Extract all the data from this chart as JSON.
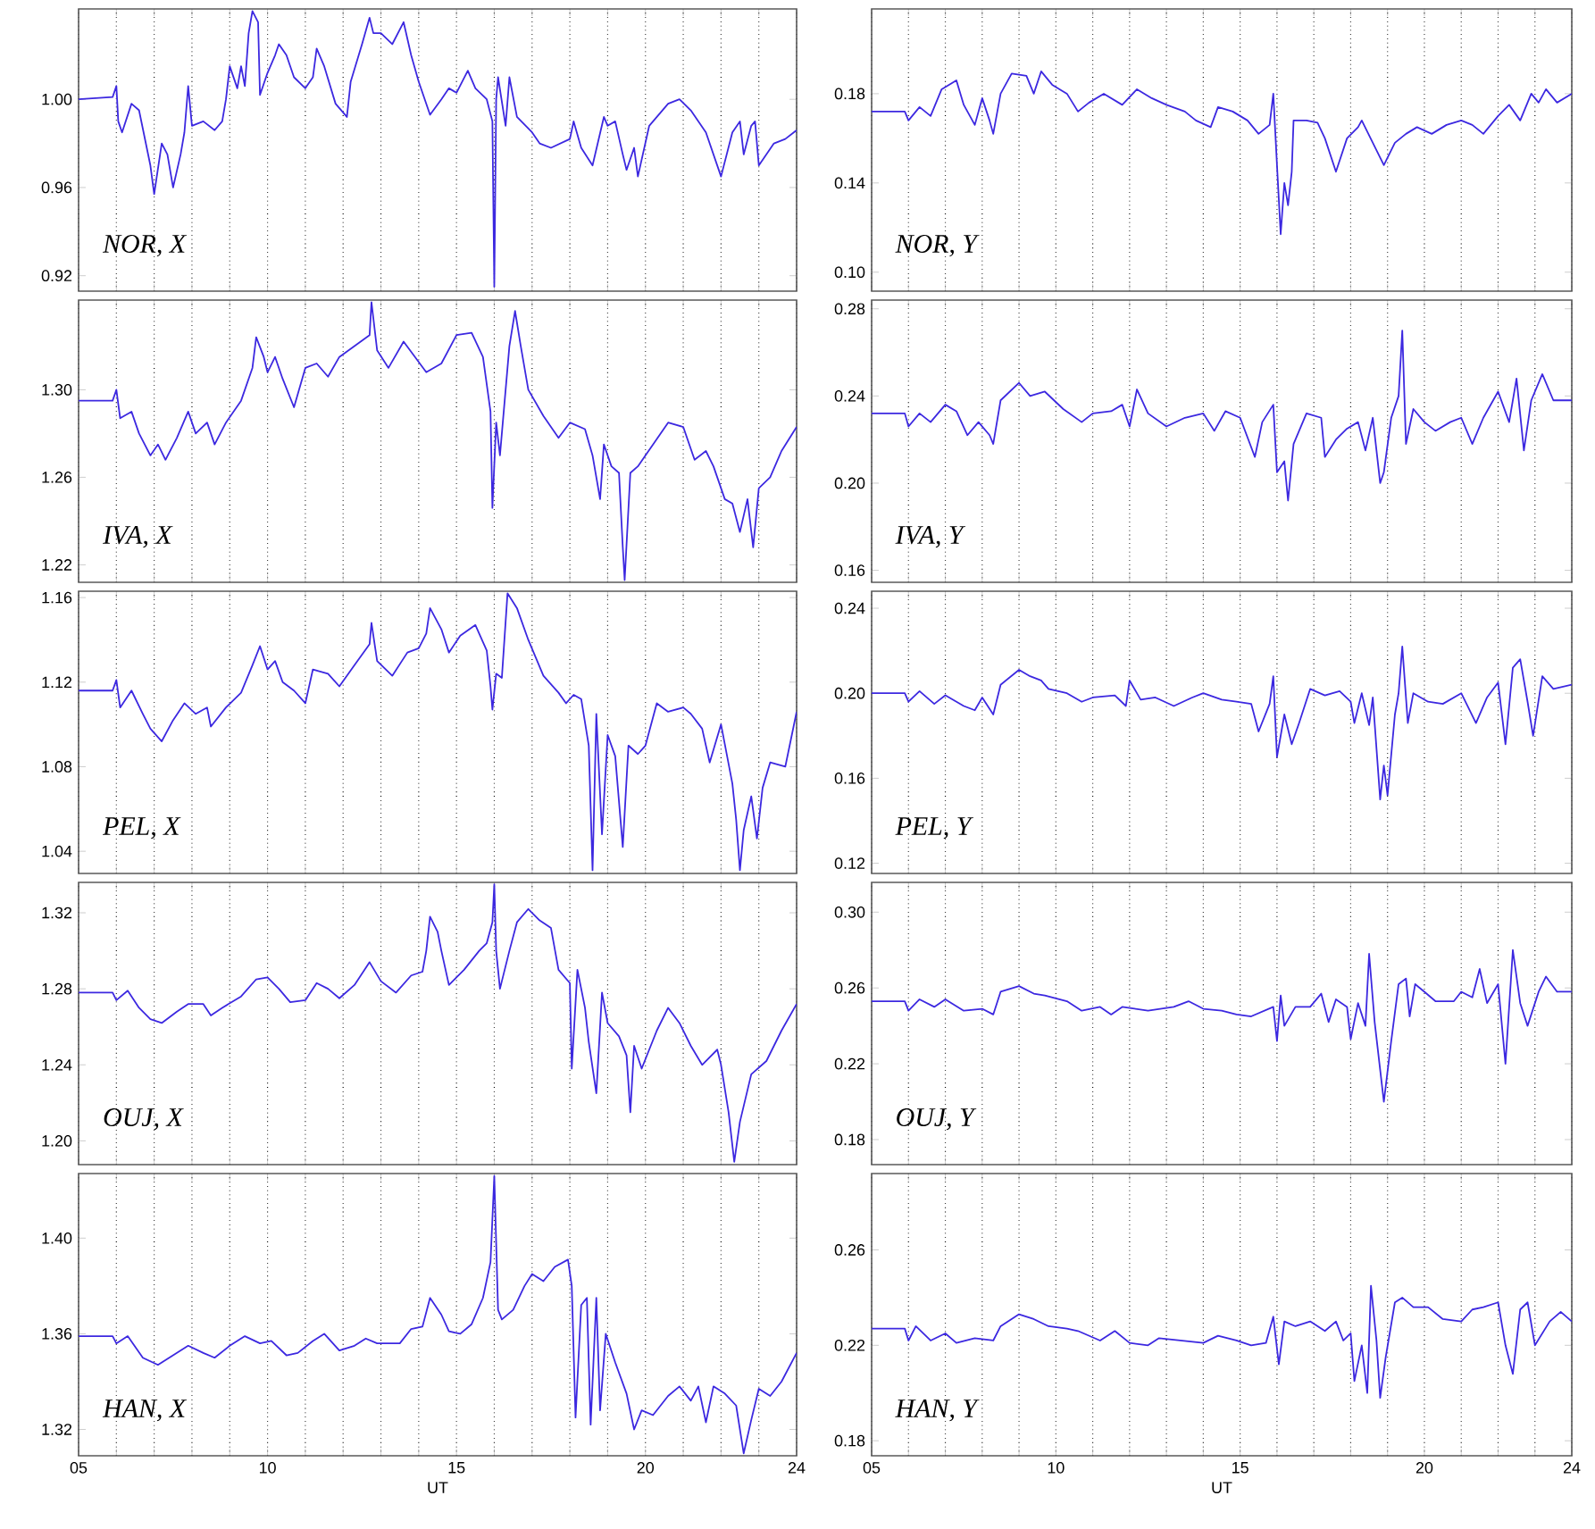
{
  "chart_data": [
    {
      "type": "line",
      "annotations": [
        "NOR, X"
      ],
      "tick_labels": "y",
      "grid": "x",
      "xlim": [
        5,
        24
      ],
      "ylim": [
        0.913,
        1.041
      ],
      "xticks": [
        5,
        6,
        7,
        8,
        9,
        10,
        11,
        12,
        13,
        14,
        15,
        16,
        17,
        18,
        19,
        20,
        21,
        22,
        23,
        24
      ],
      "yticks": [
        0.92,
        0.96,
        {
          "value": 1.0,
          "label": "1.00"
        }
      ],
      "x": [
        5,
        5.9,
        6,
        6.05,
        6.15,
        6.4,
        6.6,
        6.9,
        7,
        7.2,
        7.35,
        7.5,
        7.7,
        7.8,
        7.9,
        8,
        8.3,
        8.6,
        8.8,
        8.9,
        9,
        9.2,
        9.3,
        9.4,
        9.5,
        9.6,
        9.75,
        9.8,
        10,
        10.2,
        10.3,
        10.5,
        10.7,
        11,
        11.2,
        11.3,
        11.5,
        11.8,
        12.1,
        12.2,
        12.5,
        12.7,
        12.8,
        13,
        13.3,
        13.6,
        13.8,
        14,
        14.3,
        14.6,
        14.8,
        15,
        15.3,
        15.5,
        15.8,
        15.95,
        16,
        16.05,
        16.1,
        16.3,
        16.4,
        16.6,
        17,
        17.2,
        17.5,
        18,
        18.1,
        18.3,
        18.6,
        18.9,
        19,
        19.2,
        19.4,
        19.5,
        19.7,
        19.8,
        20.1,
        20.6,
        20.9,
        21.2,
        21.6,
        21.8,
        22,
        22.3,
        22.5,
        22.6,
        22.8,
        22.9,
        23,
        23.4,
        23.7,
        24
      ],
      "series": [
        {
          "color": "#3c28e0",
          "values": [
            1.0,
            1.001,
            1.006,
            0.99,
            0.985,
            0.998,
            0.995,
            0.97,
            0.957,
            0.98,
            0.975,
            0.96,
            0.975,
            0.985,
            1.006,
            0.988,
            0.99,
            0.986,
            0.99,
            1.0,
            1.015,
            1.005,
            1.015,
            1.006,
            1.03,
            1.04,
            1.035,
            1.002,
            1.012,
            1.02,
            1.025,
            1.02,
            1.01,
            1.005,
            1.01,
            1.023,
            1.015,
            0.998,
            0.992,
            1.008,
            1.025,
            1.037,
            1.03,
            1.03,
            1.025,
            1.035,
            1.02,
            1.008,
            0.993,
            1.0,
            1.005,
            1.003,
            1.013,
            1.005,
            1.0,
            0.99,
            0.915,
            1.0,
            1.01,
            0.988,
            1.01,
            0.992,
            0.985,
            0.98,
            0.978,
            0.982,
            0.99,
            0.978,
            0.97,
            0.992,
            0.988,
            0.99,
            0.975,
            0.968,
            0.978,
            0.965,
            0.988,
            0.998,
            1.0,
            0.995,
            0.985,
            0.975,
            0.965,
            0.985,
            0.99,
            0.975,
            0.988,
            0.99,
            0.97,
            0.98,
            0.982,
            0.986
          ]
        }
      ]
    },
    {
      "type": "line",
      "annotations": [
        "NOR, Y"
      ],
      "tick_labels": "y",
      "grid": "x",
      "xlim": [
        5,
        24
      ],
      "ylim": [
        0.0915,
        0.218
      ],
      "xticks": [
        5,
        6,
        7,
        8,
        9,
        10,
        11,
        12,
        13,
        14,
        15,
        16,
        17,
        18,
        19,
        20,
        21,
        22,
        23,
        24
      ],
      "yticks": [
        {
          "value": 0.1,
          "label": "0.10"
        },
        0.14,
        0.18
      ],
      "x": [
        5,
        5.9,
        6,
        6.3,
        6.6,
        6.9,
        7.3,
        7.5,
        7.8,
        8,
        8.2,
        8.3,
        8.5,
        8.8,
        9.2,
        9.4,
        9.6,
        9.9,
        10.3,
        10.6,
        10.9,
        11.3,
        11.8,
        12.2,
        12.6,
        13,
        13.5,
        13.8,
        14.2,
        14.4,
        14.8,
        15.2,
        15.5,
        15.8,
        15.9,
        16,
        16.1,
        16.2,
        16.3,
        16.4,
        16.45,
        16.8,
        17.1,
        17.3,
        17.6,
        17.9,
        18.2,
        18.3,
        18.6,
        18.9,
        19.2,
        19.5,
        19.8,
        20.2,
        20.6,
        21,
        21.3,
        21.6,
        22,
        22.3,
        22.6,
        22.9,
        23.1,
        23.3,
        23.6,
        24
      ],
      "series": [
        {
          "color": "#3c28e0",
          "values": [
            0.172,
            0.172,
            0.168,
            0.174,
            0.17,
            0.182,
            0.186,
            0.175,
            0.166,
            0.178,
            0.168,
            0.162,
            0.18,
            0.189,
            0.188,
            0.18,
            0.19,
            0.184,
            0.18,
            0.172,
            0.176,
            0.18,
            0.175,
            0.182,
            0.178,
            0.175,
            0.172,
            0.168,
            0.165,
            0.174,
            0.172,
            0.168,
            0.162,
            0.166,
            0.18,
            0.148,
            0.117,
            0.14,
            0.13,
            0.145,
            0.168,
            0.168,
            0.167,
            0.16,
            0.145,
            0.16,
            0.165,
            0.168,
            0.158,
            0.148,
            0.158,
            0.162,
            0.165,
            0.162,
            0.166,
            0.168,
            0.166,
            0.162,
            0.17,
            0.175,
            0.168,
            0.18,
            0.176,
            0.182,
            0.176,
            0.18
          ]
        }
      ]
    },
    {
      "type": "line",
      "annotations": [
        "IVA, X"
      ],
      "tick_labels": "y",
      "grid": "x",
      "xlim": [
        5,
        24
      ],
      "ylim": [
        1.212,
        1.341
      ],
      "xticks": [
        5,
        6,
        7,
        8,
        9,
        10,
        11,
        12,
        13,
        14,
        15,
        16,
        17,
        18,
        19,
        20,
        21,
        22,
        23,
        24
      ],
      "yticks": [
        1.22,
        1.26,
        {
          "value": 1.3,
          "label": "1.30"
        }
      ],
      "x": [
        5,
        5.9,
        6,
        6.1,
        6.4,
        6.6,
        6.9,
        7.1,
        7.3,
        7.6,
        7.9,
        8.1,
        8.4,
        8.6,
        8.9,
        9.3,
        9.6,
        9.7,
        9.9,
        10,
        10.2,
        10.4,
        10.7,
        11,
        11.3,
        11.6,
        11.9,
        12.3,
        12.7,
        12.75,
        12.9,
        13.2,
        13.6,
        13.9,
        14.2,
        14.6,
        15,
        15.4,
        15.7,
        15.9,
        15.95,
        16.05,
        16.15,
        16.3,
        16.4,
        16.55,
        16.7,
        16.9,
        17.3,
        17.7,
        18,
        18.4,
        18.6,
        18.8,
        18.9,
        19.1,
        19.3,
        19.4,
        19.45,
        19.6,
        19.8,
        20.2,
        20.6,
        21,
        21.3,
        21.6,
        21.8,
        22.1,
        22.3,
        22.5,
        22.7,
        22.85,
        23,
        23.3,
        23.6,
        24
      ],
      "series": [
        {
          "color": "#3c28e0",
          "values": [
            1.295,
            1.295,
            1.3,
            1.287,
            1.29,
            1.28,
            1.27,
            1.275,
            1.268,
            1.278,
            1.29,
            1.28,
            1.285,
            1.275,
            1.285,
            1.295,
            1.31,
            1.324,
            1.315,
            1.308,
            1.315,
            1.305,
            1.292,
            1.31,
            1.312,
            1.306,
            1.315,
            1.32,
            1.325,
            1.34,
            1.318,
            1.31,
            1.322,
            1.315,
            1.308,
            1.312,
            1.325,
            1.326,
            1.315,
            1.29,
            1.246,
            1.285,
            1.27,
            1.3,
            1.32,
            1.336,
            1.32,
            1.3,
            1.288,
            1.278,
            1.285,
            1.282,
            1.27,
            1.25,
            1.275,
            1.265,
            1.262,
            1.228,
            1.213,
            1.262,
            1.265,
            1.275,
            1.285,
            1.283,
            1.268,
            1.272,
            1.265,
            1.25,
            1.248,
            1.235,
            1.25,
            1.228,
            1.255,
            1.26,
            1.272,
            1.283
          ]
        }
      ]
    },
    {
      "type": "line",
      "annotations": [
        "IVA, Y"
      ],
      "tick_labels": "y",
      "grid": "x",
      "xlim": [
        5,
        24
      ],
      "ylim": [
        0.1545,
        0.284
      ],
      "xticks": [
        5,
        6,
        7,
        8,
        9,
        10,
        11,
        12,
        13,
        14,
        15,
        16,
        17,
        18,
        19,
        20,
        21,
        22,
        23,
        24
      ],
      "yticks": [
        0.16,
        {
          "value": 0.2,
          "label": "0.20"
        },
        0.24,
        0.28
      ],
      "x": [
        5,
        5.9,
        6,
        6.3,
        6.6,
        7,
        7.3,
        7.6,
        7.9,
        8.2,
        8.3,
        8.5,
        9,
        9.3,
        9.7,
        10.2,
        10.7,
        11,
        11.5,
        11.8,
        12,
        12.2,
        12.5,
        13,
        13.5,
        14,
        14.3,
        14.6,
        15,
        15.4,
        15.6,
        15.9,
        16,
        16.2,
        16.3,
        16.45,
        16.8,
        17.2,
        17.3,
        17.6,
        17.9,
        18.2,
        18.4,
        18.6,
        18.8,
        18.9,
        19.1,
        19.3,
        19.4,
        19.5,
        19.7,
        20,
        20.3,
        20.7,
        21,
        21.3,
        21.6,
        22,
        22.3,
        22.5,
        22.7,
        22.9,
        23.2,
        23.5,
        24
      ],
      "series": [
        {
          "color": "#3c28e0",
          "values": [
            0.232,
            0.232,
            0.226,
            0.232,
            0.228,
            0.236,
            0.233,
            0.222,
            0.228,
            0.222,
            0.218,
            0.238,
            0.246,
            0.24,
            0.242,
            0.234,
            0.228,
            0.232,
            0.233,
            0.236,
            0.226,
            0.243,
            0.232,
            0.226,
            0.23,
            0.232,
            0.224,
            0.233,
            0.23,
            0.212,
            0.228,
            0.236,
            0.205,
            0.21,
            0.192,
            0.218,
            0.232,
            0.23,
            0.212,
            0.22,
            0.225,
            0.228,
            0.215,
            0.23,
            0.2,
            0.205,
            0.23,
            0.24,
            0.27,
            0.218,
            0.234,
            0.228,
            0.224,
            0.228,
            0.23,
            0.218,
            0.23,
            0.242,
            0.228,
            0.248,
            0.215,
            0.238,
            0.25,
            0.238,
            0.238
          ]
        }
      ]
    },
    {
      "type": "line",
      "annotations": [
        "PEL, X"
      ],
      "tick_labels": "y",
      "grid": "x",
      "xlim": [
        5,
        24
      ],
      "ylim": [
        1.0295,
        1.163
      ],
      "xticks": [
        5,
        6,
        7,
        8,
        9,
        10,
        11,
        12,
        13,
        14,
        15,
        16,
        17,
        18,
        19,
        20,
        21,
        22,
        23,
        24
      ],
      "yticks": [
        1.04,
        1.08,
        1.12,
        1.16
      ],
      "x": [
        5,
        5.9,
        6,
        6.1,
        6.4,
        6.7,
        6.9,
        7.2,
        7.5,
        7.8,
        8.1,
        8.4,
        8.5,
        8.9,
        9.3,
        9.6,
        9.8,
        10,
        10.2,
        10.4,
        10.7,
        11,
        11.2,
        11.6,
        11.9,
        12.3,
        12.7,
        12.75,
        12.9,
        13.3,
        13.7,
        14,
        14.2,
        14.3,
        14.6,
        14.8,
        15.1,
        15.5,
        15.8,
        15.9,
        15.95,
        16.05,
        16.2,
        16.35,
        16.6,
        16.9,
        17.3,
        17.7,
        17.9,
        18.1,
        18.3,
        18.5,
        18.6,
        18.7,
        18.85,
        19,
        19.2,
        19.4,
        19.55,
        19.8,
        20,
        20.3,
        20.6,
        21,
        21.2,
        21.5,
        21.7,
        22,
        22.3,
        22.4,
        22.5,
        22.6,
        22.8,
        22.95,
        23.1,
        23.3,
        23.7,
        24
      ],
      "series": [
        {
          "color": "#3c28e0",
          "values": [
            1.116,
            1.116,
            1.121,
            1.108,
            1.116,
            1.105,
            1.098,
            1.092,
            1.102,
            1.11,
            1.105,
            1.108,
            1.099,
            1.108,
            1.115,
            1.128,
            1.137,
            1.126,
            1.13,
            1.12,
            1.116,
            1.11,
            1.126,
            1.124,
            1.118,
            1.128,
            1.138,
            1.148,
            1.13,
            1.123,
            1.134,
            1.136,
            1.143,
            1.155,
            1.145,
            1.134,
            1.142,
            1.147,
            1.135,
            1.118,
            1.107,
            1.124,
            1.122,
            1.162,
            1.155,
            1.14,
            1.123,
            1.115,
            1.11,
            1.114,
            1.112,
            1.09,
            1.031,
            1.105,
            1.048,
            1.095,
            1.085,
            1.042,
            1.09,
            1.086,
            1.09,
            1.11,
            1.106,
            1.108,
            1.105,
            1.098,
            1.082,
            1.1,
            1.072,
            1.055,
            1.031,
            1.05,
            1.066,
            1.046,
            1.07,
            1.082,
            1.08,
            1.106
          ]
        }
      ]
    },
    {
      "type": "line",
      "annotations": [
        "PEL, Y"
      ],
      "tick_labels": "y",
      "grid": "x",
      "xlim": [
        5,
        24
      ],
      "ylim": [
        0.1152,
        0.248
      ],
      "xticks": [
        5,
        6,
        7,
        8,
        9,
        10,
        11,
        12,
        13,
        14,
        15,
        16,
        17,
        18,
        19,
        20,
        21,
        22,
        23,
        24
      ],
      "yticks": [
        0.12,
        0.16,
        {
          "value": 0.2,
          "label": "0.20"
        },
        0.24
      ],
      "x": [
        5,
        5.9,
        6,
        6.3,
        6.7,
        7,
        7.5,
        7.8,
        8,
        8.3,
        8.5,
        9,
        9.3,
        9.6,
        9.8,
        10.3,
        10.7,
        11,
        11.6,
        11.9,
        12,
        12.3,
        12.7,
        13.2,
        13.7,
        14,
        14.5,
        14.9,
        15.3,
        15.5,
        15.8,
        15.9,
        16,
        16.2,
        16.4,
        16.6,
        16.9,
        17.3,
        17.7,
        18,
        18.1,
        18.3,
        18.5,
        18.6,
        18.8,
        18.9,
        19,
        19.2,
        19.3,
        19.4,
        19.55,
        19.7,
        20.1,
        20.5,
        21,
        21.4,
        21.7,
        22,
        22.2,
        22.4,
        22.6,
        22.8,
        22.95,
        23.2,
        23.5,
        24
      ],
      "series": [
        {
          "color": "#3c28e0",
          "values": [
            0.2,
            0.2,
            0.196,
            0.201,
            0.195,
            0.199,
            0.194,
            0.192,
            0.198,
            0.19,
            0.204,
            0.211,
            0.208,
            0.206,
            0.202,
            0.2,
            0.196,
            0.198,
            0.199,
            0.194,
            0.206,
            0.197,
            0.198,
            0.194,
            0.198,
            0.2,
            0.197,
            0.196,
            0.195,
            0.182,
            0.195,
            0.208,
            0.17,
            0.19,
            0.176,
            0.186,
            0.202,
            0.199,
            0.201,
            0.196,
            0.186,
            0.2,
            0.185,
            0.198,
            0.15,
            0.166,
            0.152,
            0.19,
            0.2,
            0.222,
            0.186,
            0.2,
            0.196,
            0.195,
            0.2,
            0.186,
            0.198,
            0.205,
            0.176,
            0.212,
            0.216,
            0.196,
            0.18,
            0.208,
            0.202,
            0.204
          ]
        }
      ]
    },
    {
      "type": "line",
      "annotations": [
        "OUJ, X"
      ],
      "tick_labels": "y",
      "grid": "x",
      "xlim": [
        5,
        24
      ],
      "ylim": [
        1.1875,
        1.336
      ],
      "xticks": [
        5,
        6,
        7,
        8,
        9,
        10,
        11,
        12,
        13,
        14,
        15,
        16,
        17,
        18,
        19,
        20,
        21,
        22,
        23,
        24
      ],
      "yticks": [
        {
          "value": 1.2,
          "label": "1.20"
        },
        1.24,
        1.28,
        1.32
      ],
      "x": [
        5,
        5.9,
        6,
        6.3,
        6.6,
        6.9,
        7.2,
        7.6,
        7.9,
        8.3,
        8.5,
        8.8,
        9.3,
        9.7,
        10,
        10.3,
        10.6,
        11,
        11.3,
        11.6,
        11.9,
        12.3,
        12.7,
        13,
        13.4,
        13.8,
        14.1,
        14.2,
        14.3,
        14.5,
        14.6,
        14.8,
        15.2,
        15.6,
        15.8,
        15.95,
        16,
        16.05,
        16.15,
        16.4,
        16.6,
        16.9,
        17.2,
        17.5,
        17.7,
        18,
        18.05,
        18.2,
        18.4,
        18.5,
        18.7,
        18.85,
        19,
        19.3,
        19.5,
        19.6,
        19.7,
        19.9,
        20.3,
        20.6,
        20.9,
        21.2,
        21.5,
        21.9,
        22,
        22.2,
        22.35,
        22.5,
        22.8,
        23.2,
        23.6,
        24
      ],
      "series": [
        {
          "color": "#3c28e0",
          "values": [
            1.278,
            1.278,
            1.274,
            1.279,
            1.27,
            1.264,
            1.262,
            1.268,
            1.272,
            1.272,
            1.266,
            1.27,
            1.276,
            1.285,
            1.286,
            1.28,
            1.273,
            1.274,
            1.283,
            1.28,
            1.275,
            1.282,
            1.294,
            1.284,
            1.278,
            1.287,
            1.289,
            1.3,
            1.318,
            1.31,
            1.3,
            1.282,
            1.29,
            1.3,
            1.304,
            1.315,
            1.335,
            1.3,
            1.28,
            1.3,
            1.315,
            1.322,
            1.316,
            1.312,
            1.29,
            1.283,
            1.238,
            1.29,
            1.27,
            1.252,
            1.225,
            1.278,
            1.262,
            1.255,
            1.245,
            1.215,
            1.25,
            1.238,
            1.258,
            1.27,
            1.262,
            1.25,
            1.24,
            1.248,
            1.24,
            1.215,
            1.189,
            1.21,
            1.235,
            1.242,
            1.258,
            1.272
          ]
        }
      ]
    },
    {
      "type": "line",
      "annotations": [
        "OUJ, Y"
      ],
      "tick_labels": "y",
      "grid": "x",
      "xlim": [
        5,
        24
      ],
      "ylim": [
        0.1668,
        0.3157
      ],
      "xticks": [
        5,
        6,
        7,
        8,
        9,
        10,
        11,
        12,
        13,
        14,
        15,
        16,
        17,
        18,
        19,
        20,
        21,
        22,
        23,
        24
      ],
      "yticks": [
        0.18,
        0.22,
        0.26,
        {
          "value": 0.3,
          "label": "0.30"
        }
      ],
      "x": [
        5,
        5.9,
        6,
        6.3,
        6.7,
        7,
        7.5,
        8,
        8.3,
        8.5,
        9,
        9.4,
        9.7,
        10.3,
        10.7,
        11.2,
        11.5,
        11.8,
        12.5,
        13.2,
        13.6,
        14,
        14.5,
        14.9,
        15.3,
        15.9,
        16,
        16.1,
        16.2,
        16.5,
        16.9,
        17.2,
        17.4,
        17.6,
        17.9,
        18,
        18.2,
        18.4,
        18.5,
        18.65,
        18.9,
        19.1,
        19.3,
        19.5,
        19.6,
        19.75,
        20,
        20.3,
        20.8,
        21,
        21.3,
        21.5,
        21.7,
        22,
        22.2,
        22.4,
        22.6,
        22.8,
        23.1,
        23.3,
        23.6,
        24
      ],
      "series": [
        {
          "color": "#3c28e0",
          "values": [
            0.253,
            0.253,
            0.248,
            0.254,
            0.25,
            0.254,
            0.248,
            0.249,
            0.246,
            0.258,
            0.261,
            0.257,
            0.256,
            0.253,
            0.248,
            0.25,
            0.246,
            0.25,
            0.248,
            0.25,
            0.253,
            0.249,
            0.248,
            0.246,
            0.245,
            0.25,
            0.232,
            0.256,
            0.24,
            0.25,
            0.25,
            0.257,
            0.242,
            0.254,
            0.25,
            0.233,
            0.252,
            0.24,
            0.278,
            0.242,
            0.2,
            0.232,
            0.262,
            0.265,
            0.245,
            0.262,
            0.258,
            0.253,
            0.253,
            0.258,
            0.255,
            0.27,
            0.252,
            0.262,
            0.22,
            0.28,
            0.252,
            0.24,
            0.258,
            0.266,
            0.258,
            0.258
          ]
        }
      ]
    },
    {
      "type": "line",
      "annotations": [
        "HAN, X"
      ],
      "xlabel": "UT",
      "grid": "x",
      "xlim": [
        5,
        24
      ],
      "ylim": [
        1.309,
        1.427
      ],
      "xticks": [
        {
          "value": 5,
          "label": "05"
        },
        {
          "value": 6,
          "label": null
        },
        {
          "value": 7,
          "label": null
        },
        {
          "value": 8,
          "label": null
        },
        {
          "value": 9,
          "label": null
        },
        10,
        {
          "value": 11,
          "label": null
        },
        {
          "value": 12,
          "label": null
        },
        {
          "value": 13,
          "label": null
        },
        {
          "value": 14,
          "label": null
        },
        15,
        {
          "value": 16,
          "label": null
        },
        {
          "value": 17,
          "label": null
        },
        {
          "value": 18,
          "label": null
        },
        {
          "value": 19,
          "label": null
        },
        20,
        {
          "value": 21,
          "label": null
        },
        {
          "value": 22,
          "label": null
        },
        {
          "value": 23,
          "label": null
        },
        24
      ],
      "yticks": [
        1.32,
        1.36,
        {
          "value": 1.4,
          "label": "1.40"
        }
      ],
      "x": [
        5,
        5.9,
        6,
        6.3,
        6.7,
        7.1,
        7.5,
        7.9,
        8.3,
        8.6,
        9,
        9.4,
        9.8,
        10.1,
        10.5,
        10.8,
        11.2,
        11.5,
        11.9,
        12.3,
        12.6,
        12.9,
        13.5,
        13.8,
        14.1,
        14.3,
        14.6,
        14.8,
        15.1,
        15.4,
        15.7,
        15.9,
        16,
        16.1,
        16.2,
        16.5,
        16.8,
        17,
        17.3,
        17.6,
        17.95,
        18.05,
        18.15,
        18.3,
        18.45,
        18.55,
        18.7,
        18.8,
        18.95,
        19.2,
        19.5,
        19.7,
        19.9,
        20.2,
        20.6,
        20.9,
        21.2,
        21.4,
        21.6,
        21.8,
        22.1,
        22.4,
        22.6,
        22.8,
        23,
        23.3,
        23.6,
        24
      ],
      "series": [
        {
          "color": "#3c28e0",
          "values": [
            1.359,
            1.359,
            1.356,
            1.359,
            1.35,
            1.347,
            1.351,
            1.355,
            1.352,
            1.35,
            1.355,
            1.359,
            1.356,
            1.357,
            1.351,
            1.352,
            1.357,
            1.36,
            1.353,
            1.355,
            1.358,
            1.356,
            1.356,
            1.362,
            1.363,
            1.375,
            1.368,
            1.361,
            1.36,
            1.364,
            1.375,
            1.39,
            1.426,
            1.37,
            1.366,
            1.37,
            1.38,
            1.385,
            1.382,
            1.388,
            1.391,
            1.38,
            1.325,
            1.372,
            1.375,
            1.322,
            1.375,
            1.328,
            1.36,
            1.348,
            1.335,
            1.32,
            1.328,
            1.326,
            1.334,
            1.338,
            1.332,
            1.338,
            1.323,
            1.338,
            1.335,
            1.33,
            1.31,
            1.324,
            1.337,
            1.334,
            1.34,
            1.352
          ]
        }
      ]
    },
    {
      "type": "line",
      "annotations": [
        "HAN, Y"
      ],
      "xlabel": "UT",
      "grid": "x",
      "xlim": [
        5,
        24
      ],
      "ylim": [
        0.1737,
        0.292
      ],
      "xticks": [
        {
          "value": 5,
          "label": "05"
        },
        {
          "value": 6,
          "label": null
        },
        {
          "value": 7,
          "label": null
        },
        {
          "value": 8,
          "label": null
        },
        {
          "value": 9,
          "label": null
        },
        10,
        {
          "value": 11,
          "label": null
        },
        {
          "value": 12,
          "label": null
        },
        {
          "value": 13,
          "label": null
        },
        {
          "value": 14,
          "label": null
        },
        15,
        {
          "value": 16,
          "label": null
        },
        {
          "value": 17,
          "label": null
        },
        {
          "value": 18,
          "label": null
        },
        {
          "value": 19,
          "label": null
        },
        20,
        {
          "value": 21,
          "label": null
        },
        {
          "value": 22,
          "label": null
        },
        {
          "value": 23,
          "label": null
        },
        24
      ],
      "yticks": [
        0.18,
        0.22,
        0.26
      ],
      "x": [
        5,
        5.9,
        6,
        6.2,
        6.6,
        7,
        7.3,
        7.8,
        8.3,
        8.5,
        9,
        9.4,
        9.8,
        10.3,
        10.6,
        11.2,
        11.6,
        12,
        12.5,
        12.8,
        13.4,
        14,
        14.4,
        14.9,
        15.3,
        15.7,
        15.9,
        16.05,
        16.2,
        16.5,
        16.9,
        17.3,
        17.6,
        17.8,
        18,
        18.1,
        18.3,
        18.45,
        18.55,
        18.7,
        18.8,
        18.95,
        19.2,
        19.4,
        19.7,
        20.1,
        20.5,
        21,
        21.3,
        21.6,
        22,
        22.2,
        22.4,
        22.6,
        22.8,
        23,
        23.4,
        23.7,
        24
      ],
      "series": [
        {
          "color": "#3c28e0",
          "values": [
            0.227,
            0.227,
            0.222,
            0.228,
            0.222,
            0.225,
            0.221,
            0.223,
            0.222,
            0.228,
            0.233,
            0.231,
            0.228,
            0.227,
            0.226,
            0.222,
            0.226,
            0.221,
            0.22,
            0.223,
            0.222,
            0.221,
            0.224,
            0.222,
            0.22,
            0.221,
            0.232,
            0.212,
            0.23,
            0.228,
            0.23,
            0.226,
            0.23,
            0.222,
            0.225,
            0.205,
            0.22,
            0.2,
            0.245,
            0.222,
            0.198,
            0.215,
            0.238,
            0.24,
            0.236,
            0.236,
            0.231,
            0.23,
            0.235,
            0.236,
            0.238,
            0.22,
            0.208,
            0.235,
            0.238,
            0.22,
            0.23,
            0.234,
            0.23
          ]
        }
      ]
    }
  ]
}
